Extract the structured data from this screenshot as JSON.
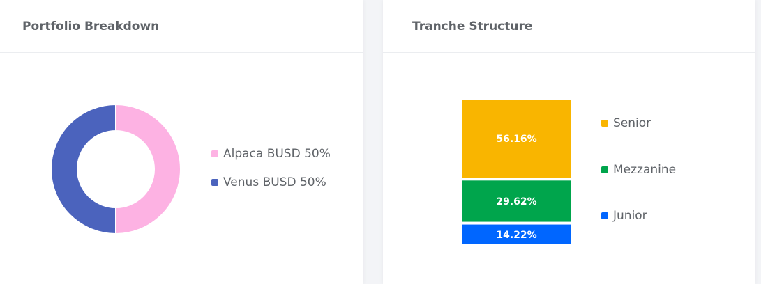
{
  "panels": {
    "portfolio": {
      "title": "Portfolio Breakdown"
    },
    "tranche": {
      "title": "Tranche Structure"
    }
  },
  "chart_data": [
    {
      "type": "pie",
      "variant": "donut",
      "title": "Portfolio Breakdown",
      "slices": [
        {
          "label": "Alpaca BUSD 50%",
          "value": 50,
          "color": "#fdb2e3"
        },
        {
          "label": "Venus BUSD 50%",
          "value": 50,
          "color": "#4b63bd"
        }
      ],
      "legend_position": "right"
    },
    {
      "type": "bar",
      "variant": "stacked-100",
      "title": "Tranche Structure",
      "series": [
        {
          "name": "Senior",
          "value": 56.16,
          "label": "56.16%",
          "color": "#f9b500"
        },
        {
          "name": "Mezzanine",
          "value": 29.62,
          "label": "29.62%",
          "color": "#00a54c"
        },
        {
          "name": "Junior",
          "value": 14.22,
          "label": "14.22%",
          "color": "#0066ff"
        }
      ],
      "legend_position": "right"
    }
  ]
}
